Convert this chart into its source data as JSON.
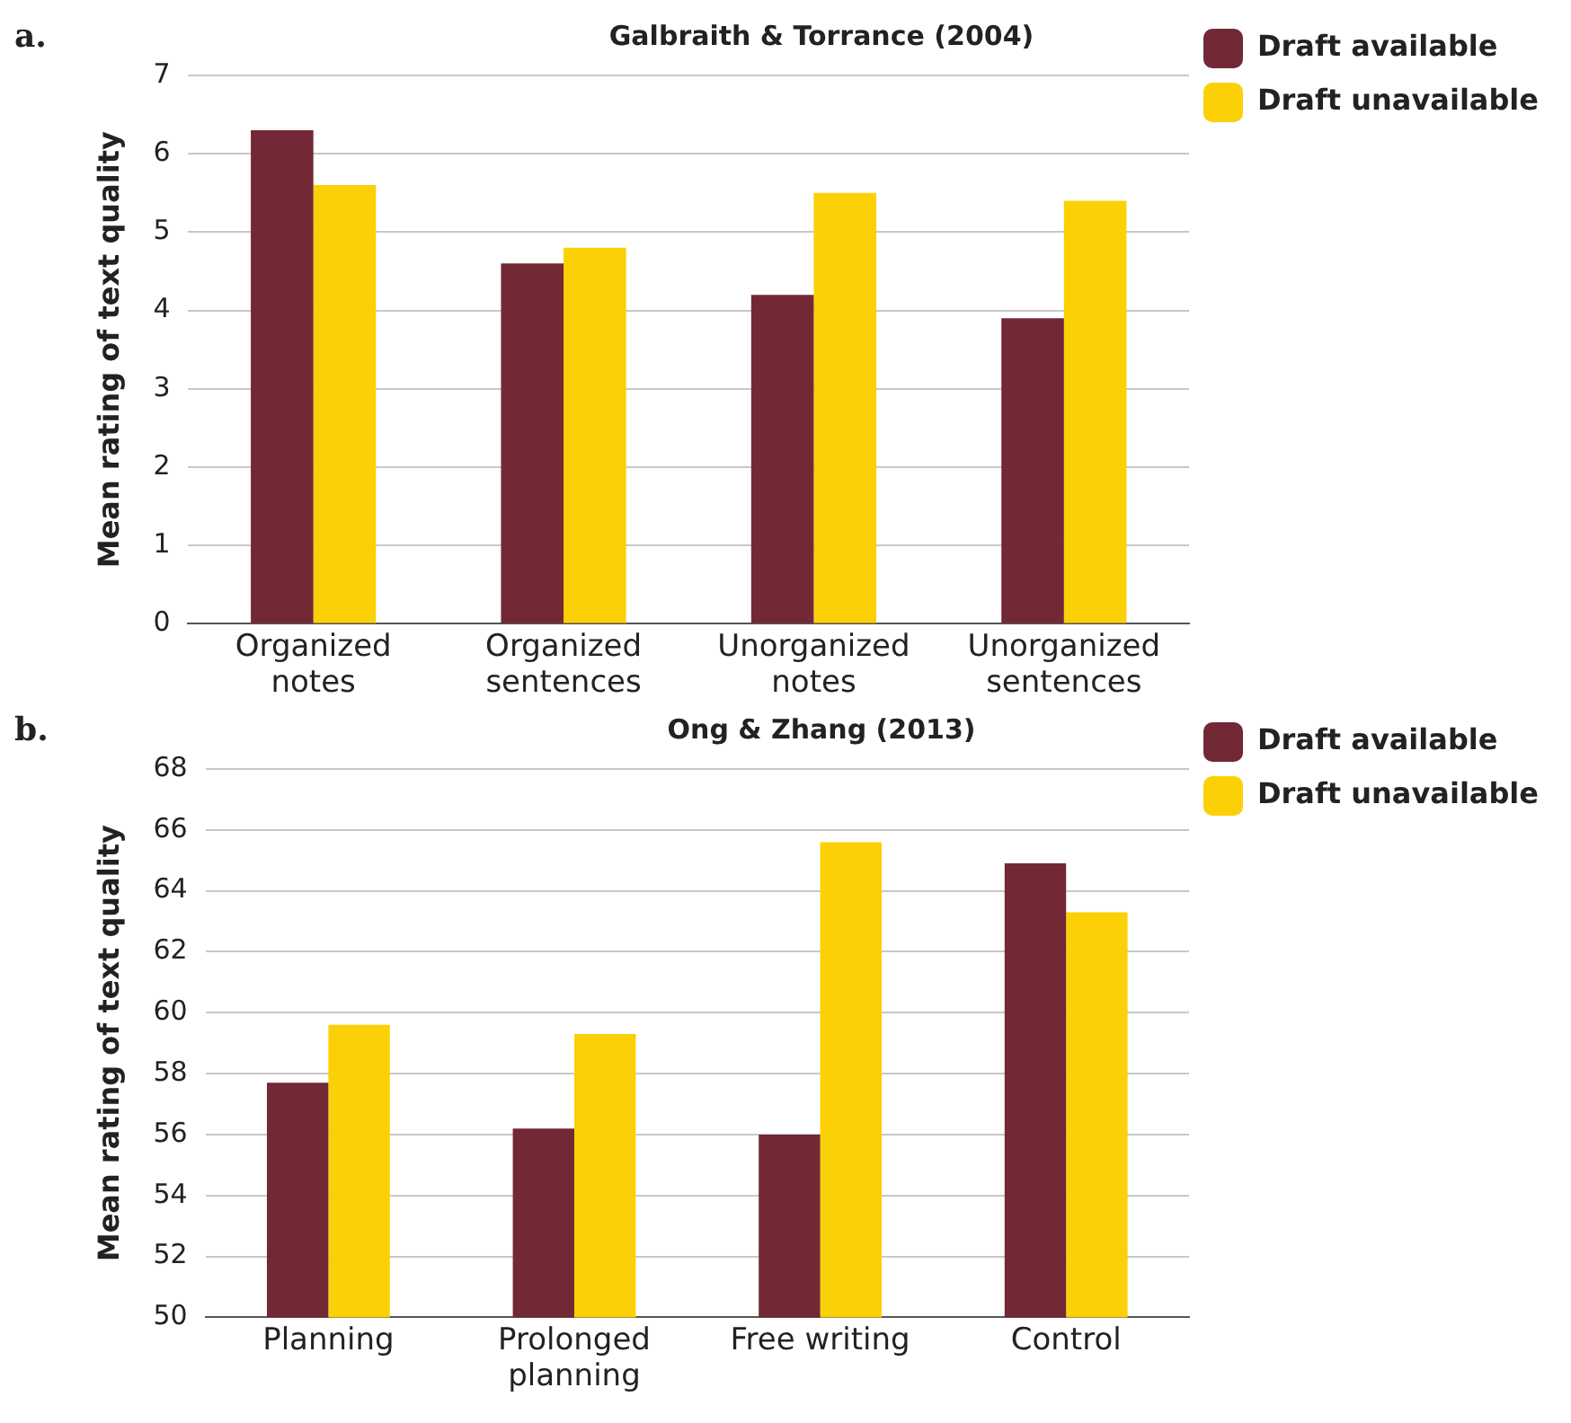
{
  "chart_data": [
    {
      "type": "bar",
      "title": "Galbraith & Torrance (2004)",
      "ylabel": "Mean rating of text quality",
      "annotations": [
        "a."
      ],
      "categories": [
        "Organized notes",
        "Organized sentences",
        "Unorganized notes",
        "Unorganized sentences"
      ],
      "series": [
        {
          "name": "Draft available",
          "color": "#722835",
          "values": [
            6.3,
            4.6,
            4.2,
            3.9
          ]
        },
        {
          "name": "Draft unavailable",
          "color": "#fcd006",
          "values": [
            5.6,
            4.8,
            5.5,
            5.4
          ]
        }
      ],
      "ylim": [
        0,
        7
      ],
      "yticks": [
        0,
        1,
        2,
        3,
        4,
        5,
        6,
        7
      ],
      "grid": "y",
      "legend": "top right"
    },
    {
      "type": "bar",
      "title": "Ong & Zhang (2013)",
      "ylabel": "Mean rating of text quality",
      "annotations": [
        "b."
      ],
      "categories": [
        "Planning",
        "Prolonged planning",
        "Free writing",
        "Control"
      ],
      "series": [
        {
          "name": "Draft available",
          "color": "#722835",
          "values": [
            57.7,
            56.2,
            56.0,
            64.9
          ]
        },
        {
          "name": "Draft unavailable",
          "color": "#fcd006",
          "values": [
            59.6,
            59.3,
            65.6,
            63.3
          ]
        }
      ],
      "ylim": [
        50,
        68
      ],
      "yticks": [
        50,
        52,
        54,
        56,
        58,
        60,
        62,
        64,
        66,
        68
      ],
      "grid": "y",
      "legend": "top right"
    }
  ]
}
